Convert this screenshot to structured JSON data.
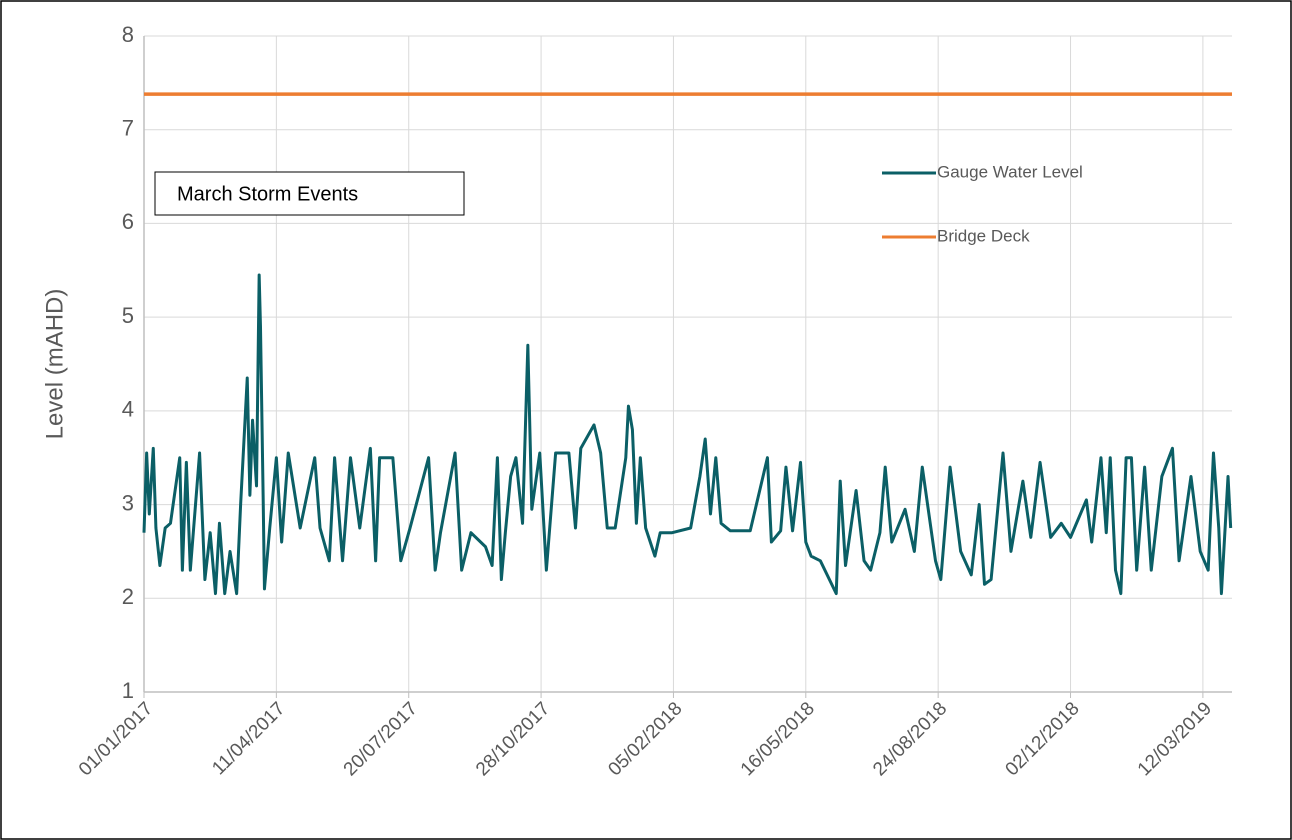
{
  "chart_data": {
    "type": "line",
    "y_label": "Level (mAHD)",
    "annotation": "March Storm Events",
    "xlim": [
      "2017-01-01",
      "2019-04-03"
    ],
    "xticks": [
      {
        "value": "2017-01-01",
        "label": "01/01/2017"
      },
      {
        "value": "2017-04-11",
        "label": "11/04/2017"
      },
      {
        "value": "2017-07-20",
        "label": "20/07/2017"
      },
      {
        "value": "2017-10-28",
        "label": "28/10/2017"
      },
      {
        "value": "2018-02-05",
        "label": "05/02/2018"
      },
      {
        "value": "2018-05-16",
        "label": "16/05/2018"
      },
      {
        "value": "2018-08-24",
        "label": "24/08/2018"
      },
      {
        "value": "2018-12-02",
        "label": "02/12/2018"
      },
      {
        "value": "2019-03-12",
        "label": "12/03/2019"
      }
    ],
    "ylim": [
      1,
      8
    ],
    "yticks": [
      1,
      2,
      3,
      4,
      5,
      6,
      7,
      8
    ],
    "grid": true,
    "legend": "upper right",
    "series": [
      {
        "name": "Gauge Water Level",
        "color": "#0b5f66",
        "x": [
          "2017-01-01",
          "2017-01-03",
          "2017-01-05",
          "2017-01-08",
          "2017-01-10",
          "2017-01-13",
          "2017-01-17",
          "2017-01-21",
          "2017-01-28",
          "2017-01-30",
          "2017-02-02",
          "2017-02-05",
          "2017-02-12",
          "2017-02-16",
          "2017-02-20",
          "2017-02-24",
          "2017-02-27",
          "2017-03-03",
          "2017-03-07",
          "2017-03-12",
          "2017-03-15",
          "2017-03-20",
          "2017-03-22",
          "2017-03-24",
          "2017-03-27",
          "2017-03-29",
          "2017-03-30",
          "2017-04-01",
          "2017-04-02",
          "2017-04-06",
          "2017-04-11",
          "2017-04-15",
          "2017-04-20",
          "2017-04-29",
          "2017-05-10",
          "2017-05-14",
          "2017-05-21",
          "2017-05-25",
          "2017-05-31",
          "2017-06-06",
          "2017-06-13",
          "2017-06-21",
          "2017-06-25",
          "2017-06-28",
          "2017-07-08",
          "2017-07-14",
          "2017-07-21",
          "2017-08-04",
          "2017-08-09",
          "2017-08-13",
          "2017-08-24",
          "2017-08-29",
          "2017-09-05",
          "2017-09-16",
          "2017-09-21",
          "2017-09-25",
          "2017-09-28",
          "2017-10-01",
          "2017-10-05",
          "2017-10-09",
          "2017-10-14",
          "2017-10-18",
          "2017-10-21",
          "2017-10-27",
          "2017-11-01",
          "2017-11-08",
          "2017-11-18",
          "2017-11-23",
          "2017-11-27",
          "2017-12-07",
          "2017-12-12",
          "2017-12-17",
          "2017-12-23",
          "2017-12-31",
          "2018-01-02",
          "2018-01-05",
          "2018-01-08",
          "2018-01-11",
          "2018-01-15",
          "2018-01-22",
          "2018-01-26",
          "2018-02-04",
          "2018-02-18",
          "2018-02-25",
          "2018-03-01",
          "2018-03-05",
          "2018-03-09",
          "2018-03-13",
          "2018-03-20",
          "2018-04-04",
          "2018-04-17",
          "2018-04-20",
          "2018-04-27",
          "2018-05-01",
          "2018-05-06",
          "2018-05-12",
          "2018-05-16",
          "2018-05-20",
          "2018-05-27",
          "2018-06-08",
          "2018-06-11",
          "2018-06-15",
          "2018-06-23",
          "2018-06-29",
          "2018-07-04",
          "2018-07-11",
          "2018-07-15",
          "2018-07-20",
          "2018-07-30",
          "2018-08-06",
          "2018-08-12",
          "2018-08-22",
          "2018-08-26",
          "2018-09-02",
          "2018-09-10",
          "2018-09-18",
          "2018-09-24",
          "2018-09-28",
          "2018-10-03",
          "2018-10-12",
          "2018-10-18",
          "2018-10-27",
          "2018-11-02",
          "2018-11-09",
          "2018-11-17",
          "2018-11-25",
          "2018-12-02",
          "2018-12-14",
          "2018-12-18",
          "2018-12-25",
          "2018-12-29",
          "2019-01-01",
          "2019-01-05",
          "2019-01-09",
          "2019-01-13",
          "2019-01-17",
          "2019-01-21",
          "2019-01-27",
          "2019-02-01",
          "2019-02-09",
          "2019-02-17",
          "2019-02-22",
          "2019-03-03",
          "2019-03-10",
          "2019-03-16",
          "2019-03-20",
          "2019-03-24",
          "2019-03-26",
          "2019-03-29",
          "2019-03-31",
          "2019-04-02"
        ],
        "values": [
          2.7,
          3.55,
          2.9,
          3.6,
          2.75,
          2.35,
          2.75,
          2.8,
          3.5,
          2.3,
          3.45,
          2.3,
          3.55,
          2.2,
          2.7,
          2.05,
          2.8,
          2.05,
          2.5,
          2.05,
          3.0,
          4.35,
          3.1,
          3.9,
          3.2,
          5.45,
          4.9,
          3.1,
          2.1,
          2.75,
          3.5,
          2.6,
          3.55,
          2.75,
          3.5,
          2.75,
          2.4,
          3.5,
          2.4,
          3.5,
          2.75,
          3.6,
          2.4,
          3.5,
          3.5,
          2.4,
          2.75,
          3.5,
          2.3,
          2.7,
          3.55,
          2.3,
          2.7,
          2.55,
          2.35,
          3.5,
          2.2,
          2.7,
          3.3,
          3.5,
          2.8,
          4.7,
          2.95,
          3.55,
          2.3,
          3.55,
          3.55,
          2.75,
          3.6,
          3.85,
          3.55,
          2.75,
          2.75,
          3.5,
          4.05,
          3.8,
          2.8,
          3.5,
          2.75,
          2.45,
          2.7,
          2.7,
          2.75,
          3.3,
          3.7,
          2.9,
          3.5,
          2.8,
          2.72,
          2.72,
          3.5,
          2.6,
          2.72,
          3.4,
          2.72,
          3.45,
          2.6,
          2.45,
          2.4,
          2.05,
          3.25,
          2.35,
          3.15,
          2.4,
          2.3,
          2.7,
          3.4,
          2.6,
          2.95,
          2.5,
          3.4,
          2.4,
          2.2,
          3.4,
          2.5,
          2.25,
          3.0,
          2.15,
          2.2,
          3.55,
          2.5,
          3.25,
          2.65,
          3.45,
          2.65,
          2.8,
          2.65,
          3.05,
          2.6,
          3.5,
          2.7,
          3.5,
          2.3,
          2.05,
          3.5,
          3.5,
          2.3,
          3.4,
          2.3,
          3.3,
          3.6,
          2.4,
          3.3,
          2.5,
          2.3,
          3.55,
          2.75,
          2.05,
          2.8,
          3.3,
          2.75
        ]
      },
      {
        "name": "Bridge Deck",
        "color": "#ed7d31",
        "x": [
          "2017-01-01",
          "2019-04-03"
        ],
        "values": [
          7.38,
          7.38
        ]
      }
    ]
  }
}
